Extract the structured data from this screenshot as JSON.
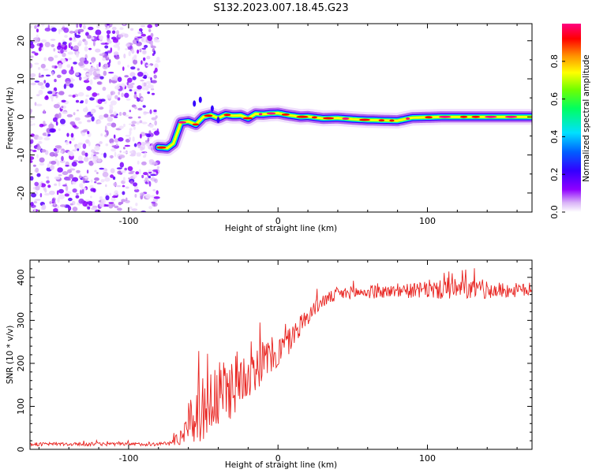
{
  "title": "S132.2023.007.18.45.G23",
  "chart_data": [
    {
      "type": "heatmap",
      "title": "S132.2023.007.18.45.G23",
      "xlabel": "Height of straight line (km)",
      "ylabel": "Frequency (Hz)",
      "xlim": [
        -166,
        170
      ],
      "ylim": [
        -25,
        24.5
      ],
      "xticks": [
        -100,
        0,
        100
      ],
      "xtick_labels": [
        "-100",
        "0",
        "100"
      ],
      "yticks": [
        -20,
        -10,
        0,
        10,
        20
      ],
      "ytick_labels": [
        "-20",
        "-10",
        "0",
        "10",
        "20"
      ],
      "noise_region_x": [
        -166,
        -80
      ],
      "signal_track": {
        "x": [
          -80,
          -74,
          -70,
          -65,
          -60,
          -55,
          -50,
          -45,
          -40,
          -35,
          -30,
          -25,
          -20,
          -15,
          -10,
          -5,
          0,
          5,
          10,
          15,
          20,
          30,
          40,
          50,
          60,
          70,
          80,
          85,
          90,
          100,
          110,
          120,
          130,
          140,
          150,
          160,
          170
        ],
        "y": [
          -8,
          -8.2,
          -7,
          -1.5,
          -1.2,
          -2,
          0,
          0.5,
          -0.3,
          0.6,
          0.3,
          0.4,
          -0.4,
          0.8,
          0.7,
          0.9,
          1,
          0.6,
          0.3,
          0,
          0.1,
          -0.4,
          -0.3,
          -0.6,
          -0.8,
          -0.9,
          -1,
          -0.6,
          -0.2,
          -0.1,
          0,
          0,
          0,
          0,
          0,
          0,
          0
        ]
      },
      "colorbar": {
        "label": "Normalized spectral amplitude",
        "range": [
          0,
          1
        ],
        "ticks": [
          "0.0",
          "0.2",
          "0.4",
          "0.6",
          "0.8"
        ],
        "colors": [
          "#ffffff",
          "#d9b3f7",
          "#8f00ff",
          "#3300ff",
          "#0060ff",
          "#00e0ff",
          "#00ff60",
          "#70ff00",
          "#ffff00",
          "#ff9000",
          "#ff0000",
          "#ff0080"
        ]
      }
    },
    {
      "type": "line",
      "xlabel": "Height of straight line (km)",
      "ylabel": "SNR (10 * v/v)",
      "xlim": [
        -166,
        170
      ],
      "ylim": [
        0,
        440
      ],
      "xticks": [
        -100,
        0,
        100
      ],
      "xtick_labels": [
        "-100",
        "0",
        "100"
      ],
      "yticks": [
        0,
        100,
        200,
        300,
        400
      ],
      "ytick_labels": [
        "0",
        "100",
        "200",
        "300",
        "400"
      ],
      "color": "#e8231f",
      "envelope": {
        "x": [
          -166,
          -120,
          -80,
          -72,
          -65,
          -60,
          -55,
          -50,
          -45,
          -40,
          -35,
          -30,
          -25,
          -20,
          -15,
          -10,
          -5,
          0,
          5,
          10,
          15,
          20,
          25,
          30,
          40,
          50,
          60,
          80,
          100,
          120,
          140,
          170
        ],
        "mean": [
          12,
          12,
          12,
          14,
          30,
          55,
          80,
          95,
          110,
          120,
          135,
          150,
          165,
          180,
          190,
          205,
          215,
          225,
          240,
          265,
          290,
          310,
          330,
          345,
          360,
          365,
          365,
          368,
          370,
          372,
          370,
          370
        ],
        "spread": [
          4,
          4,
          4,
          6,
          20,
          45,
          70,
          75,
          80,
          80,
          80,
          75,
          70,
          60,
          55,
          50,
          45,
          40,
          35,
          30,
          25,
          20,
          18,
          16,
          15,
          15,
          15,
          15,
          20,
          25,
          20,
          15
        ]
      }
    }
  ]
}
